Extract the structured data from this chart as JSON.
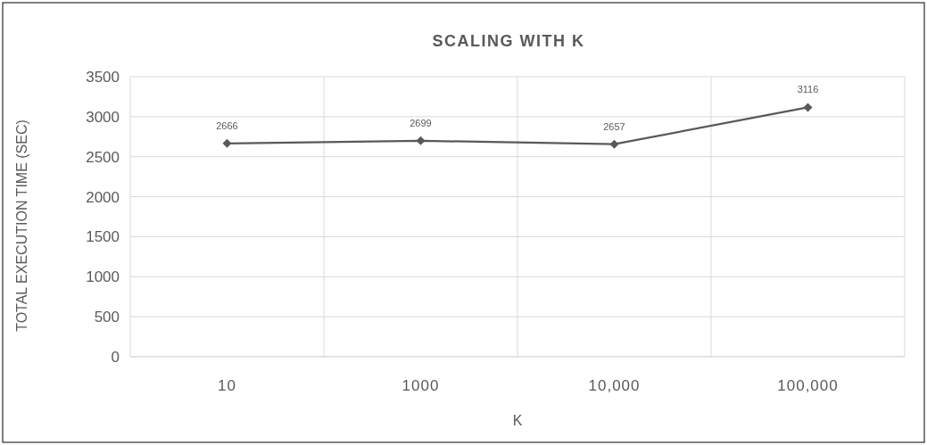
{
  "chart_data": {
    "type": "line",
    "title": "SCALING WITH K",
    "xlabel": "K",
    "ylabel": "TOTAL EXECUTION TIME (SEC)",
    "categories": [
      "10",
      "1000",
      "10,000",
      "100,000"
    ],
    "series": [
      {
        "color": "#595959",
        "values": [
          2666,
          2699,
          2657,
          3116
        ]
      }
    ],
    "ylim": [
      0,
      3500
    ],
    "yticks": [
      0,
      500,
      1000,
      1500,
      2000,
      2500,
      3000,
      3500
    ],
    "grid": true,
    "marker": "diamond",
    "data_labels": true
  }
}
